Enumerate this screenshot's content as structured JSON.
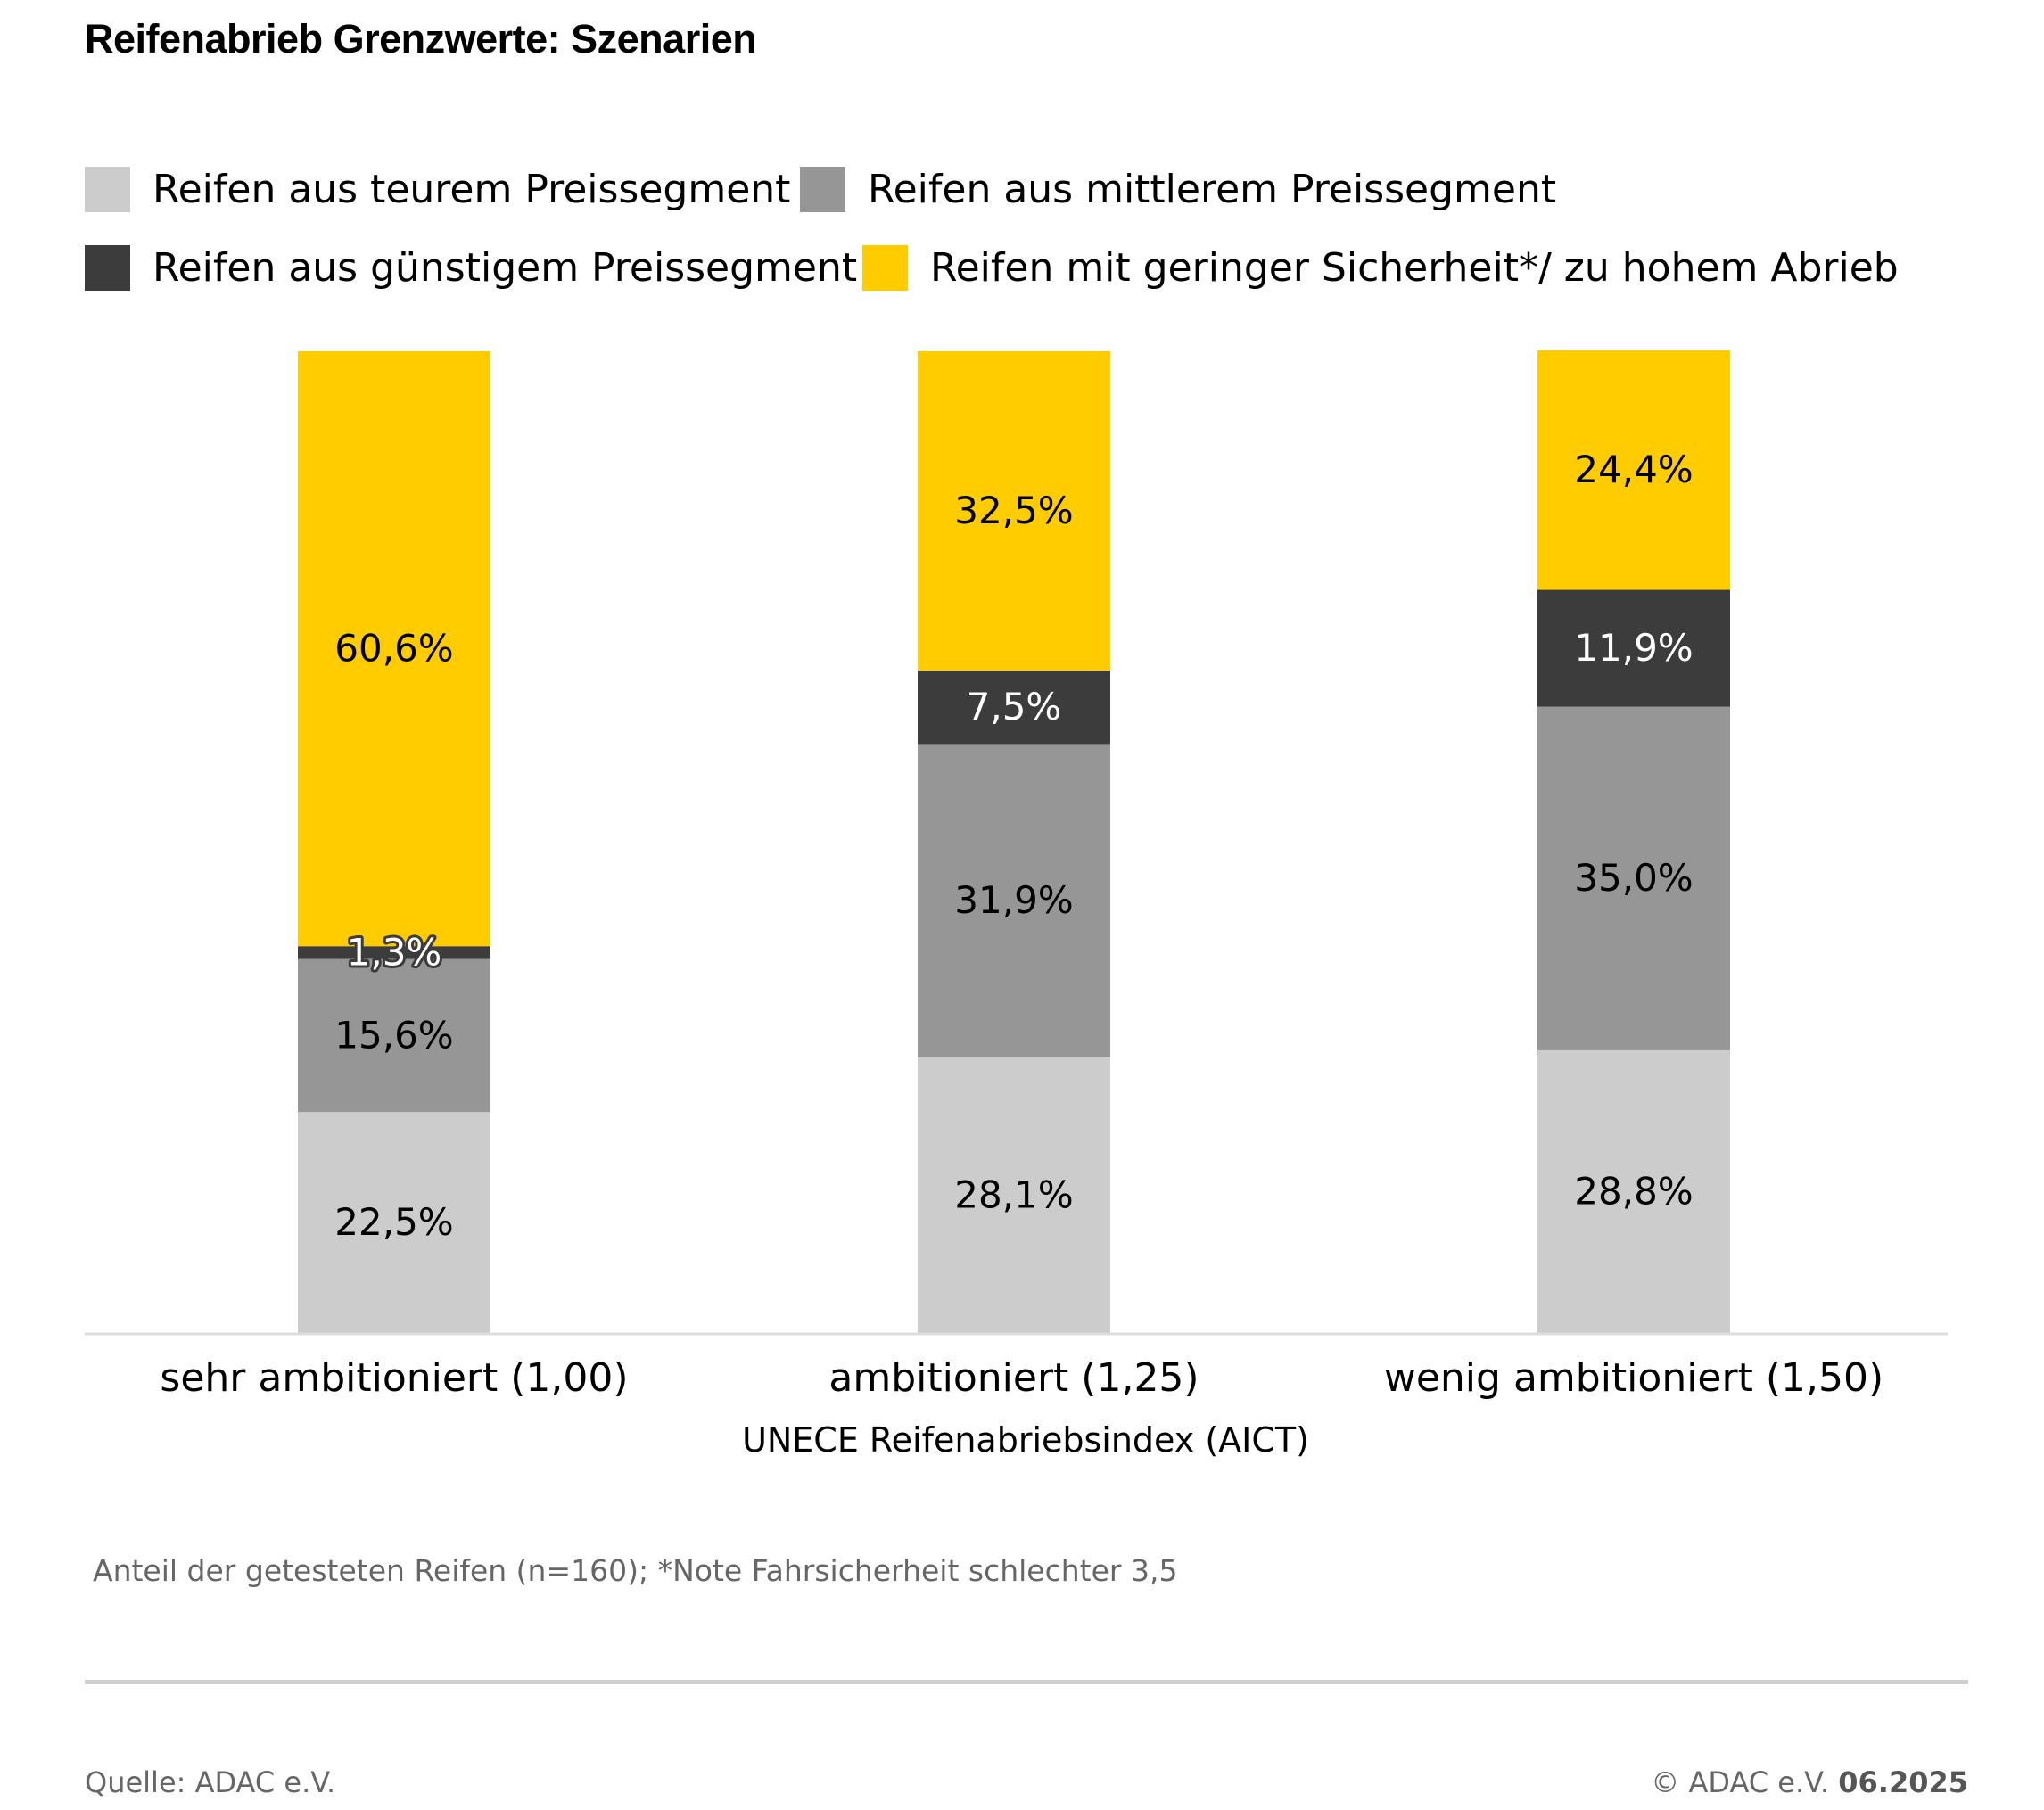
{
  "chart_data": {
    "type": "bar",
    "stacked": true,
    "title": "Reifenabrieb Grenzwerte: Szenarien",
    "xlabel": "UNECE Reifenabriebsindex (AICT)",
    "ylabel": "",
    "ylim": [
      0,
      100
    ],
    "grid": false,
    "legend_position": "top-left",
    "categories": [
      "sehr ambitioniert (1,00)",
      "ambitioniert (1,25)",
      "wenig ambitioniert (1,50)"
    ],
    "series": [
      {
        "name": "Reifen aus teurem Preissegment",
        "color": "#cccccc",
        "label_color": "#000000",
        "values": [
          22.5,
          28.1,
          28.8
        ],
        "labels": [
          "22,5%",
          "28,1%",
          "28,8%"
        ]
      },
      {
        "name": "Reifen aus mittlerem Preissegment",
        "color": "#969696",
        "label_color": "#000000",
        "values": [
          15.6,
          31.9,
          35.0
        ],
        "labels": [
          "15,6%",
          "31,9%",
          "35,0%"
        ]
      },
      {
        "name": "Reifen aus günstigem Preissegment",
        "color": "#3c3c3c",
        "label_color": "#ffffff",
        "values": [
          1.3,
          7.5,
          11.9
        ],
        "labels": [
          "1,3%",
          "7,5%",
          "11,9%"
        ]
      },
      {
        "name": "Reifen mit geringer Sicherheit*/ zu hohem Abrieb",
        "color": "#ffcc00",
        "label_color": "#000000",
        "values": [
          60.6,
          32.5,
          24.4
        ],
        "labels": [
          "60,6%",
          "32,5%",
          "24,4%"
        ]
      }
    ]
  },
  "footnote": "Anteil der getesteten Reifen (n=160); *Note Fahrsicherheit schlechter 3,5",
  "footer": {
    "source": "Quelle: ADAC e.V.",
    "copyright_prefix": "© ADAC e.V.",
    "copyright_date": "06.2025"
  },
  "colors": {
    "axis_line": "#dddddd",
    "footer_rule": "#cfcfcf"
  }
}
